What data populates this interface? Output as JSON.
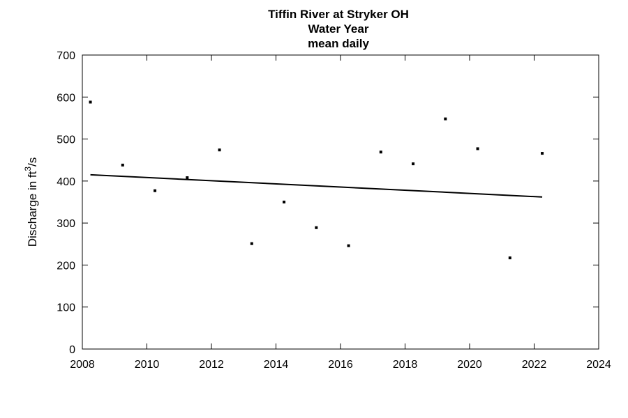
{
  "chart_data": {
    "type": "scatter",
    "title_lines": [
      "Tiffin River at Stryker OH",
      "Water Year",
      "mean daily"
    ],
    "ylabel": {
      "prefix": "Discharge in ",
      "unit_base": "ft",
      "unit_sup": "3",
      "unit_suffix": "/s"
    },
    "xlim": [
      2008,
      2024
    ],
    "ylim": [
      0,
      700
    ],
    "x_ticks": [
      2008,
      2010,
      2012,
      2014,
      2016,
      2018,
      2020,
      2022,
      2024
    ],
    "y_ticks": [
      0,
      100,
      200,
      300,
      400,
      500,
      600,
      700
    ],
    "grid": false,
    "points": [
      {
        "x": 2008.25,
        "y": 588
      },
      {
        "x": 2009.25,
        "y": 438
      },
      {
        "x": 2010.25,
        "y": 377
      },
      {
        "x": 2011.25,
        "y": 408
      },
      {
        "x": 2012.25,
        "y": 474
      },
      {
        "x": 2013.25,
        "y": 251
      },
      {
        "x": 2014.25,
        "y": 350
      },
      {
        "x": 2015.25,
        "y": 289
      },
      {
        "x": 2016.25,
        "y": 246
      },
      {
        "x": 2017.25,
        "y": 469
      },
      {
        "x": 2018.25,
        "y": 441
      },
      {
        "x": 2019.25,
        "y": 548
      },
      {
        "x": 2020.25,
        "y": 477
      },
      {
        "x": 2021.25,
        "y": 217
      },
      {
        "x": 2022.25,
        "y": 466
      }
    ],
    "trend_line": {
      "x": [
        2008.25,
        2022.25
      ],
      "y": [
        415,
        362
      ]
    }
  }
}
